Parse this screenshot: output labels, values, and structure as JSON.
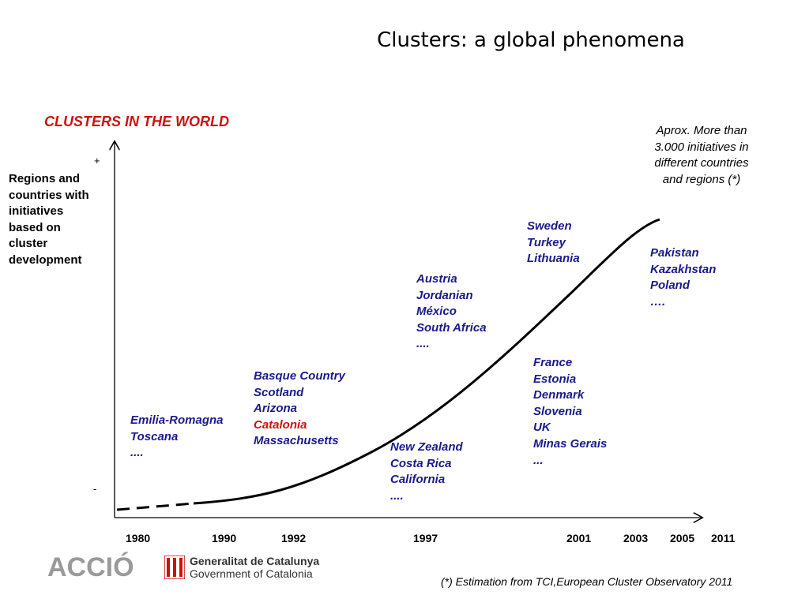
{
  "title": "Clusters: a global phenomena",
  "subtitle": "CLUSTERS IN THE WORLD",
  "note": [
    "Aprox. More than",
    "3.000 initiatives in",
    "different countries",
    "and regions (*)"
  ],
  "y_axis": {
    "label_lines": [
      "Regions and",
      "countries with",
      "initiatives",
      "based on",
      "cluster",
      "development"
    ],
    "top_marker": "+",
    "bottom_marker": "-"
  },
  "x_axis": {
    "years": [
      "1980",
      "1990",
      "1992",
      "1997",
      "2001",
      "2003",
      "2005",
      "2011"
    ]
  },
  "groups": [
    {
      "id": "g1980",
      "items": [
        "Emilia-Romagna",
        "Toscana",
        "...."
      ]
    },
    {
      "id": "g1990",
      "items": [
        "Basque Country",
        "Scotland",
        "Arizona",
        "Catalonia",
        "Massachusetts"
      ],
      "highlight_index": 3
    },
    {
      "id": "g1992",
      "items": [
        "New Zealand",
        "Costa Rica",
        "California",
        "...."
      ]
    },
    {
      "id": "g1997",
      "items": [
        "Austria",
        "Jordanian",
        "México",
        "South Africa",
        "...."
      ]
    },
    {
      "id": "g2001",
      "items": [
        "France",
        "Estonia",
        "Denmark",
        "Slovenia",
        "UK",
        "Minas Gerais",
        "..."
      ]
    },
    {
      "id": "g2003",
      "items": [
        "Sweden",
        "Turkey",
        "Lithuania"
      ]
    },
    {
      "id": "g2011",
      "items": [
        "Pakistan",
        "Kazakhstan",
        "Poland",
        "…."
      ]
    }
  ],
  "footnote": "(*) Estimation from TCI,European Cluster Observatory 2011",
  "logos": {
    "accio": "ACCIÓ",
    "gencat_line1": "Generalitat de Catalunya",
    "gencat_line2": "Government of Catalonia"
  },
  "colors": {
    "group_text": "#1a1a8c",
    "highlight": "#cc1111",
    "subtitle": "#cc1111",
    "curve": "#000000",
    "logo_grey": "#9a9a9a",
    "gencat_red": "#cc1111"
  }
}
